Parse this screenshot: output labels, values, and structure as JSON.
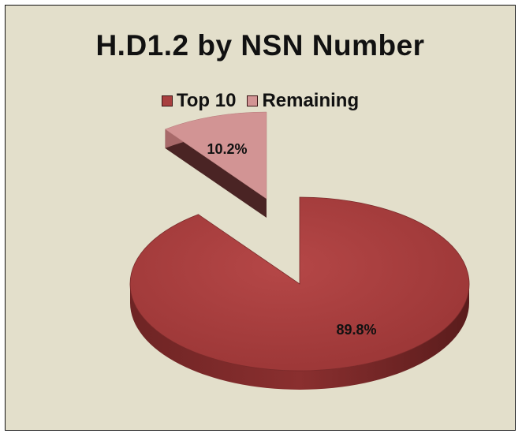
{
  "chart_data": {
    "type": "pie",
    "title": "H.D1.2 by NSN Number",
    "legend_position": "top",
    "categories": [
      "Top 10",
      "Remaining"
    ],
    "values": [
      89.8,
      10.2
    ],
    "labels": [
      "89.8%",
      "10.2%"
    ],
    "colors": [
      "#a83f3f",
      "#d29494"
    ],
    "exploded": "Remaining",
    "style": "3d"
  }
}
